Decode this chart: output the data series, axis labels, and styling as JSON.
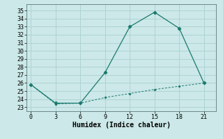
{
  "title": "",
  "xlabel": "Humidex (Indice chaleur)",
  "x": [
    0,
    3,
    6,
    9,
    12,
    15,
    18,
    21
  ],
  "line1_y": [
    25.8,
    23.5,
    23.5,
    27.3,
    33.0,
    34.8,
    32.8,
    26.0
  ],
  "line2_y": [
    25.8,
    23.4,
    23.5,
    24.2,
    24.7,
    25.2,
    25.6,
    26.0
  ],
  "line_color": "#1a7a6e",
  "bg_color": "#cce8e8",
  "grid_color": "#aad0d0",
  "xlim": [
    -0.5,
    22.5
  ],
  "ylim": [
    22.5,
    35.8
  ],
  "xticks": [
    0,
    3,
    6,
    9,
    12,
    15,
    18,
    21
  ],
  "yticks": [
    23,
    24,
    25,
    26,
    27,
    28,
    29,
    30,
    31,
    32,
    33,
    34,
    35
  ],
  "label_fontsize": 7,
  "tick_fontsize": 6
}
